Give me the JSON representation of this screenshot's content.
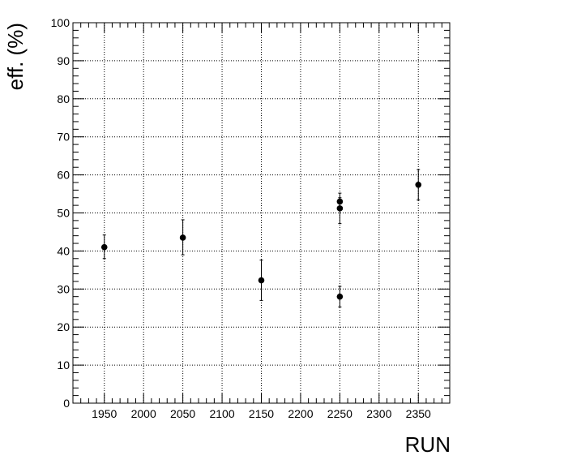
{
  "chart_data": {
    "type": "scatter",
    "title": "",
    "xlabel": "RUN",
    "ylabel": "eff. (%)",
    "xlim": [
      1910,
      2390
    ],
    "ylim": [
      0,
      100
    ],
    "grid": true,
    "x_ticks": [
      1950,
      2000,
      2050,
      2100,
      2150,
      2200,
      2250,
      2300,
      2350
    ],
    "y_ticks": [
      0,
      10,
      20,
      30,
      40,
      50,
      60,
      70,
      80,
      90,
      100
    ],
    "points": [
      {
        "x": 1950,
        "y": 41.0,
        "err_up": 3.2,
        "err_down": 3.0
      },
      {
        "x": 2050,
        "y": 43.5,
        "err_up": 4.7,
        "err_down": 4.5
      },
      {
        "x": 2150,
        "y": 32.3,
        "err_up": 5.3,
        "err_down": 5.3
      },
      {
        "x": 2250,
        "y": 53.0,
        "err_up": 2.2,
        "err_down": 2.2
      },
      {
        "x": 2250,
        "y": 51.2,
        "err_up": 2.8,
        "err_down": 4.0
      },
      {
        "x": 2250,
        "y": 28.0,
        "err_up": 2.7,
        "err_down": 2.7
      },
      {
        "x": 2350,
        "y": 57.4,
        "err_up": 4.0,
        "err_down": 4.0
      }
    ],
    "marker_color": "#000000"
  }
}
